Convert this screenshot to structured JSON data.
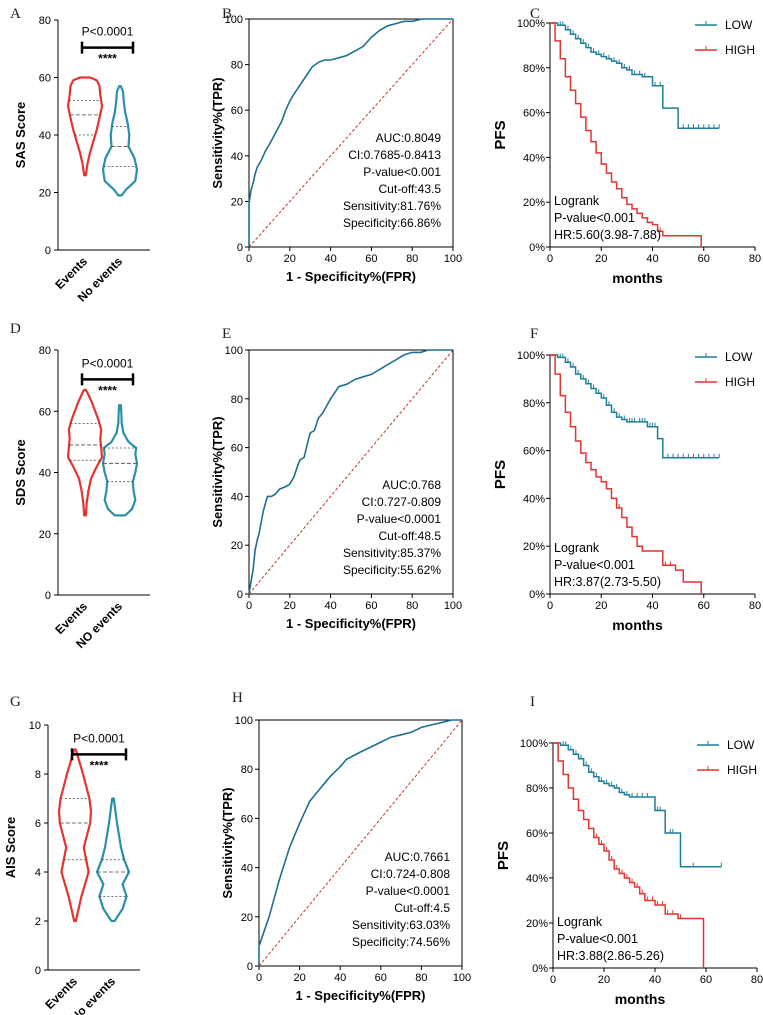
{
  "colors": {
    "events": "#e3342f",
    "no_events": "#2a8fa8",
    "low": "#1f7f99",
    "high": "#e3342f",
    "roc": "#1f6f8f",
    "diag": "#c0392b"
  },
  "chart_data": [
    {
      "panel": "A",
      "type": "violin",
      "ylabel": "SAS Score",
      "ylim": [
        0,
        80
      ],
      "yticks": [
        0,
        20,
        40,
        60,
        80
      ],
      "categories": [
        "Events",
        "No events"
      ],
      "p_value": "P<0.0001",
      "stars": "****",
      "groups": [
        {
          "name": "Events",
          "min": 26,
          "max": 60,
          "q1": 40,
          "median": 47,
          "q3": 52,
          "profile": [
            [
              26,
              0.05
            ],
            [
              30,
              0.15
            ],
            [
              34,
              0.3
            ],
            [
              38,
              0.5
            ],
            [
              42,
              0.7
            ],
            [
              46,
              0.85
            ],
            [
              50,
              1.0
            ],
            [
              54,
              0.9
            ],
            [
              57,
              0.85
            ],
            [
              59,
              0.7
            ],
            [
              60,
              0.3
            ]
          ]
        },
        {
          "name": "No events",
          "min": 19,
          "max": 57,
          "q1": 29,
          "median": 36,
          "q3": 43,
          "profile": [
            [
              19,
              0.1
            ],
            [
              21,
              0.35
            ],
            [
              24,
              0.9
            ],
            [
              28,
              1.0
            ],
            [
              32,
              0.85
            ],
            [
              36,
              0.5
            ],
            [
              40,
              0.55
            ],
            [
              44,
              0.45
            ],
            [
              48,
              0.3
            ],
            [
              52,
              0.22
            ],
            [
              55,
              0.18
            ],
            [
              57,
              0.05
            ]
          ]
        }
      ]
    },
    {
      "panel": "B",
      "type": "roc",
      "xlabel": "1 - Specificity%(FPR)",
      "ylabel": "Sensitivity%(TPR)",
      "xlim": [
        0,
        100
      ],
      "ylim": [
        0,
        100
      ],
      "ticks": [
        0,
        20,
        40,
        60,
        80,
        100
      ],
      "x": [
        0,
        0,
        1,
        2,
        3,
        4,
        6,
        8,
        10,
        13,
        16,
        18,
        20,
        22,
        25,
        28,
        31,
        34,
        37,
        40,
        44,
        48,
        52,
        56,
        60,
        64,
        68,
        72,
        76,
        80,
        85,
        90,
        95,
        100
      ],
      "y": [
        0,
        19,
        25,
        28,
        32,
        35,
        38,
        42,
        45,
        50,
        55,
        60,
        64,
        67,
        71,
        75,
        79,
        81,
        82,
        82,
        83,
        84,
        86,
        88,
        92,
        95,
        97,
        98,
        99,
        99,
        100,
        100,
        100,
        100
      ],
      "annotations": [
        "AUC:0.8049",
        "CI:0.7685-0.8413",
        "P-value<0.001",
        "Cut-off:43.5",
        "Sensitivity:81.76%",
        "Specificity:66.86%"
      ]
    },
    {
      "panel": "C",
      "type": "km",
      "xlabel": "months",
      "ylabel": "PFS",
      "xlim": [
        0,
        80
      ],
      "xticks": [
        0,
        20,
        40,
        60,
        80
      ],
      "yticks": [
        "0%",
        "20%",
        "40%",
        "60%",
        "80%",
        "100%"
      ],
      "series": [
        {
          "name": "LOW",
          "t": [
            0,
            3,
            6,
            8,
            10,
            12,
            14,
            16,
            18,
            20,
            22,
            24,
            26,
            28,
            30,
            32,
            36,
            40,
            44,
            50,
            66
          ],
          "s": [
            100,
            99,
            97,
            95,
            93,
            91,
            89,
            87,
            86,
            85,
            84,
            83,
            82,
            80,
            79,
            77,
            76,
            72,
            62,
            53,
            53
          ],
          "censors": [
            4,
            5,
            7,
            9,
            11,
            13,
            15,
            17,
            19,
            21,
            23,
            25,
            27,
            29,
            31,
            33,
            35,
            37,
            40,
            41,
            43,
            52,
            54,
            56,
            58,
            60,
            62,
            64,
            66
          ]
        },
        {
          "name": "HIGH",
          "t": [
            0,
            2,
            4,
            6,
            8,
            10,
            12,
            14,
            16,
            18,
            20,
            22,
            24,
            26,
            28,
            30,
            32,
            34,
            36,
            38,
            40,
            42,
            44,
            50,
            59
          ],
          "s": [
            100,
            92,
            84,
            76,
            70,
            64,
            58,
            52,
            47,
            42,
            37,
            33,
            29,
            26,
            22,
            19,
            17,
            15,
            13,
            11,
            10,
            7,
            5,
            5,
            0
          ],
          "censors": [
            43
          ]
        }
      ],
      "annotations": [
        "Logrank",
        "P-value<0.001",
        "HR:5.60(3.98-7.88)"
      ]
    },
    {
      "panel": "D",
      "type": "violin",
      "ylabel": "SDS Score",
      "ylim": [
        0,
        80
      ],
      "yticks": [
        0,
        20,
        40,
        60,
        80
      ],
      "categories": [
        "Events",
        "NO events"
      ],
      "p_value": "P<0.0001",
      "stars": "****",
      "groups": [
        {
          "name": "Events",
          "min": 26,
          "max": 67,
          "q1": 44,
          "median": 49,
          "q3": 56,
          "profile": [
            [
              26,
              0.05
            ],
            [
              30,
              0.1
            ],
            [
              34,
              0.2
            ],
            [
              38,
              0.35
            ],
            [
              42,
              0.7
            ],
            [
              45,
              1.0
            ],
            [
              48,
              0.95
            ],
            [
              51,
              0.9
            ],
            [
              54,
              0.95
            ],
            [
              57,
              0.8
            ],
            [
              60,
              0.6
            ],
            [
              63,
              0.4
            ],
            [
              66,
              0.15
            ],
            [
              67,
              0.05
            ]
          ]
        },
        {
          "name": "NO events",
          "min": 26,
          "max": 62,
          "q1": 37,
          "median": 43,
          "q3": 48,
          "profile": [
            [
              26,
              0.3
            ],
            [
              28,
              0.7
            ],
            [
              31,
              0.9
            ],
            [
              34,
              0.8
            ],
            [
              37,
              0.75
            ],
            [
              40,
              0.9
            ],
            [
              43,
              1.0
            ],
            [
              46,
              0.9
            ],
            [
              48,
              0.95
            ],
            [
              50,
              0.5
            ],
            [
              53,
              0.2
            ],
            [
              56,
              0.1
            ],
            [
              59,
              0.08
            ],
            [
              62,
              0.05
            ]
          ]
        }
      ]
    },
    {
      "panel": "E",
      "type": "roc",
      "xlabel": "1 - Specificity%(FPR)",
      "ylabel": "Sensitivity%(TPR)",
      "xlim": [
        0,
        100
      ],
      "ylim": [
        0,
        100
      ],
      "ticks": [
        0,
        20,
        40,
        60,
        80,
        100
      ],
      "x": [
        0,
        1,
        2,
        3,
        4,
        5,
        7,
        9,
        11,
        13,
        15,
        18,
        20,
        22,
        24,
        25,
        27,
        29,
        30,
        32,
        34,
        36,
        38,
        40,
        44,
        48,
        52,
        56,
        60,
        64,
        68,
        72,
        76,
        80,
        84,
        88,
        92,
        96,
        100
      ],
      "y": [
        0,
        5,
        10,
        18,
        22,
        25,
        34,
        40,
        40,
        41,
        43,
        44,
        45,
        48,
        53,
        55,
        56,
        63,
        66,
        67,
        72,
        74,
        77,
        80,
        85,
        86,
        88,
        89,
        90,
        92,
        94,
        96,
        98,
        99,
        99,
        100,
        100,
        100,
        100
      ],
      "annotations": [
        "AUC:0.768",
        "CI:0.727-0.809",
        "P-value<0.0001",
        "Cut-off:48.5",
        "Sensitivity:85.37%",
        "Specificity:55.62%"
      ]
    },
    {
      "panel": "F",
      "type": "km",
      "xlabel": "months",
      "ylabel": "PFS",
      "xlim": [
        0,
        80
      ],
      "xticks": [
        0,
        20,
        40,
        60,
        80
      ],
      "yticks": [
        "0%",
        "20%",
        "40%",
        "60%",
        "80%",
        "100%"
      ],
      "series": [
        {
          "name": "LOW",
          "t": [
            0,
            3,
            6,
            8,
            10,
            12,
            14,
            16,
            18,
            20,
            22,
            24,
            26,
            28,
            30,
            34,
            38,
            42,
            44,
            66
          ],
          "s": [
            100,
            99,
            97,
            95,
            92,
            90,
            88,
            86,
            84,
            82,
            79,
            76,
            74,
            73,
            72,
            72,
            70,
            65,
            57,
            57
          ],
          "censors": [
            4,
            5,
            7,
            9,
            11,
            13,
            15,
            17,
            19,
            21,
            23,
            25,
            27,
            29,
            31,
            32,
            33,
            35,
            36,
            37,
            39,
            40,
            41,
            46,
            48,
            50,
            52,
            54,
            56,
            58,
            60,
            62,
            64,
            66
          ]
        },
        {
          "name": "HIGH",
          "t": [
            0,
            2,
            4,
            6,
            8,
            10,
            12,
            14,
            16,
            18,
            20,
            22,
            24,
            26,
            28,
            30,
            32,
            34,
            36,
            40,
            44,
            49,
            52,
            59
          ],
          "s": [
            100,
            92,
            83,
            76,
            70,
            64,
            59,
            55,
            52,
            49,
            47,
            44,
            40,
            36,
            32,
            28,
            24,
            20,
            18,
            18,
            12,
            10,
            5,
            0
          ],
          "censors": [
            27,
            45,
            47
          ]
        }
      ],
      "annotations": [
        "Logrank",
        "P-value<0.001",
        "HR:3.87(2.73-5.50)"
      ]
    },
    {
      "panel": "G",
      "type": "violin",
      "ylabel": "AIS Score",
      "ylim": [
        0,
        10
      ],
      "yticks": [
        0,
        2,
        4,
        6,
        8,
        10
      ],
      "categories": [
        "Events",
        "No events"
      ],
      "p_value": "P<0.0001",
      "stars": "****",
      "groups": [
        {
          "name": "Events",
          "min": 2,
          "max": 9,
          "q1": 4.5,
          "median": 6,
          "q3": 7,
          "profile": [
            [
              2,
              0.05
            ],
            [
              3,
              0.4
            ],
            [
              4,
              0.85
            ],
            [
              5,
              0.55
            ],
            [
              6,
              0.95
            ],
            [
              6.5,
              1.0
            ],
            [
              7,
              0.9
            ],
            [
              8,
              0.5
            ],
            [
              9,
              0.05
            ]
          ]
        },
        {
          "name": "No events",
          "min": 2,
          "max": 7,
          "q1": 3,
          "median": 4,
          "q3": 4.5,
          "profile": [
            [
              2,
              0.1
            ],
            [
              2.5,
              0.6
            ],
            [
              3,
              0.85
            ],
            [
              3.5,
              0.6
            ],
            [
              4,
              1.0
            ],
            [
              4.5,
              0.7
            ],
            [
              5,
              0.5
            ],
            [
              6,
              0.25
            ],
            [
              7,
              0.05
            ]
          ]
        }
      ]
    },
    {
      "panel": "H",
      "type": "roc",
      "xlabel": "1 - Specificity%(FPR)",
      "ylabel": "Sensitivity%(TPR)",
      "xlim": [
        0,
        100
      ],
      "ylim": [
        0,
        100
      ],
      "ticks": [
        0,
        20,
        40,
        60,
        80,
        100
      ],
      "x": [
        0,
        0,
        5,
        10,
        15,
        20,
        25,
        30,
        35,
        40,
        43,
        50,
        55,
        60,
        65,
        70,
        75,
        80,
        85,
        90,
        95,
        100
      ],
      "y": [
        0,
        8,
        20,
        35,
        48,
        58,
        67,
        72,
        77,
        81,
        84,
        87,
        89,
        91,
        93,
        94,
        95,
        97,
        98,
        99,
        100,
        100
      ],
      "annotations": [
        "AUC:0.7661",
        "CI:0.724-0.808",
        "P-value<0.0001",
        "Cut-off:4.5",
        "Sensitivity:63.03%",
        "Specificity:74.56%"
      ]
    },
    {
      "panel": "I",
      "type": "km",
      "xlabel": "months",
      "ylabel": "PFS",
      "xlim": [
        0,
        80
      ],
      "xticks": [
        0,
        20,
        40,
        60,
        80
      ],
      "yticks": [
        "0%",
        "20%",
        "40%",
        "60%",
        "80%",
        "100%"
      ],
      "series": [
        {
          "name": "LOW",
          "t": [
            0,
            3,
            6,
            8,
            10,
            12,
            14,
            16,
            18,
            20,
            22,
            24,
            26,
            28,
            30,
            34,
            40,
            44,
            50,
            66
          ],
          "s": [
            100,
            99,
            97,
            95,
            93,
            90,
            87,
            85,
            83,
            82,
            81,
            80,
            78,
            77,
            76,
            76,
            70,
            60,
            45,
            45
          ],
          "censors": [
            4,
            5,
            7,
            9,
            11,
            13,
            15,
            17,
            19,
            21,
            23,
            25,
            27,
            29,
            31,
            33,
            35,
            37,
            41,
            42,
            46,
            47,
            55,
            66
          ]
        },
        {
          "name": "HIGH",
          "t": [
            0,
            2,
            4,
            6,
            8,
            10,
            12,
            14,
            16,
            18,
            20,
            22,
            24,
            26,
            28,
            30,
            32,
            34,
            36,
            40,
            44,
            49,
            52,
            59
          ],
          "s": [
            100,
            92,
            86,
            80,
            75,
            70,
            66,
            62,
            58,
            55,
            52,
            48,
            44,
            42,
            40,
            38,
            36,
            33,
            30,
            28,
            24,
            22,
            22,
            0
          ],
          "censors": [
            17,
            19,
            21,
            23,
            25,
            27,
            29,
            31,
            33,
            35,
            37,
            39,
            41,
            43,
            45,
            47,
            50
          ]
        }
      ],
      "annotations": [
        "Logrank",
        "P-value<0.001",
        "HR:3.88(2.86-5.26)"
      ]
    }
  ]
}
